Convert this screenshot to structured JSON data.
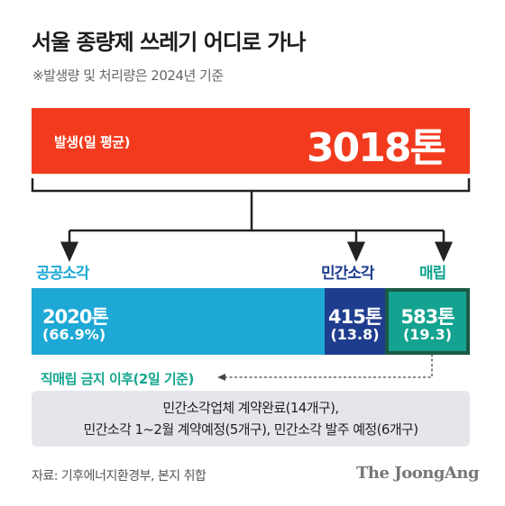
{
  "header": {
    "title": "서울 종량제 쓰레기 어디로 가나",
    "subtitle": "※발생량 및 처리량은 2024년 기준"
  },
  "total": {
    "label": "발생(일 평균)",
    "value_text": "3018톤"
  },
  "chart_data": {
    "type": "bar",
    "unit": "톤",
    "total": 3018,
    "categories": [
      "공공소각",
      "민간소각",
      "매립"
    ],
    "values": [
      2020,
      415,
      583
    ],
    "percent_labels": [
      "(66.9%)",
      "(13.8)",
      "(19.3)"
    ],
    "value_labels": [
      "2020톤",
      "415톤",
      "583톤"
    ],
    "colors": [
      "#1ea8d6",
      "#1f3d8f",
      "#14a390"
    ],
    "label_colors": [
      "#1ea8d6",
      "#1f3d8f",
      "#14a390"
    ]
  },
  "notes": {
    "ban": "직매립 금지 이후(2일 기준)",
    "contract_line1": "민간소각업체 계약완료(14개구),",
    "contract_line2": "민간소각 1~2월 계약예정(5개구), 민간소각 발주 예정(6개구)"
  },
  "footer": {
    "source": "자료: 기후에너지환경부, 본지 취합",
    "brand": "The JoongAng"
  }
}
